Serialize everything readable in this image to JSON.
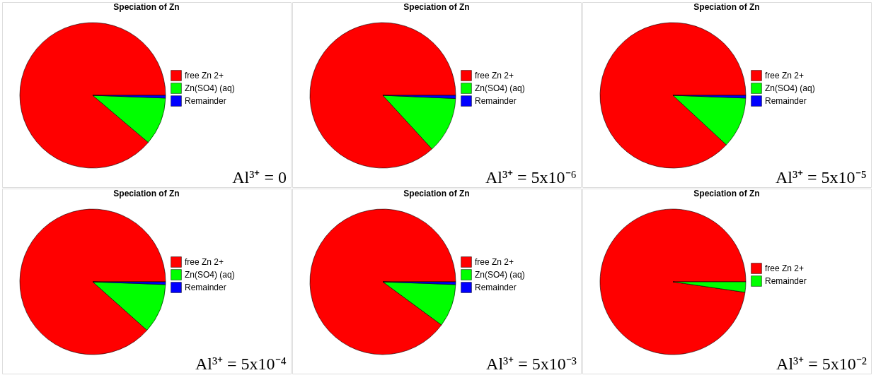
{
  "chart_data": [
    {
      "type": "pie",
      "title": "Speciation of Zn",
      "categories": [
        "free Zn 2+",
        "Zn(SO4) (aq)",
        "Remainder"
      ],
      "values": [
        88.8,
        10.6,
        0.6
      ],
      "colors": [
        "#ff0000",
        "#00ff00",
        "#0000ff"
      ],
      "legend": "right",
      "annotations": [
        "Al³⁺ = 0"
      ]
    },
    {
      "type": "pie",
      "title": "Speciation of Zn",
      "categories": [
        "free Zn 2+",
        "Zn(SO4) (aq)",
        "Remainder"
      ],
      "values": [
        86.8,
        12.5,
        0.7
      ],
      "colors": [
        "#ff0000",
        "#00ff00",
        "#0000ff"
      ],
      "legend": "right",
      "annotations": [
        "Al³⁺ = 5x10⁻⁶"
      ]
    },
    {
      "type": "pie",
      "title": "Speciation of Zn",
      "categories": [
        "free Zn 2+",
        "Zn(SO4) (aq)",
        "Remainder"
      ],
      "values": [
        88.1,
        11.3,
        0.6
      ],
      "colors": [
        "#ff0000",
        "#00ff00",
        "#0000ff"
      ],
      "legend": "right",
      "annotations": [
        "Al³⁺ = 5x10⁻⁵"
      ]
    },
    {
      "type": "pie",
      "title": "Speciation of Zn",
      "categories": [
        "free Zn 2+",
        "Zn(SO4) (aq)",
        "Remainder"
      ],
      "values": [
        88.4,
        11.0,
        0.6
      ],
      "colors": [
        "#ff0000",
        "#00ff00",
        "#0000ff"
      ],
      "legend": "right",
      "annotations": [
        "Al³⁺ = 5x10⁻⁴"
      ]
    },
    {
      "type": "pie",
      "title": "Speciation of Zn",
      "categories": [
        "free Zn 2+",
        "Zn(SO4) (aq)",
        "Remainder"
      ],
      "values": [
        89.9,
        9.5,
        0.6
      ],
      "colors": [
        "#ff0000",
        "#00ff00",
        "#0000ff"
      ],
      "legend": "right",
      "annotations": [
        "Al³⁺ = 5x10⁻³"
      ]
    },
    {
      "type": "pie",
      "title": "Speciation of Zn",
      "categories": [
        "free Zn 2+",
        "Remainder"
      ],
      "values": [
        97.7,
        2.3
      ],
      "colors": [
        "#ff0000",
        "#00ff00"
      ],
      "legend": "right",
      "annotations": [
        "Al³⁺ = 5x10⁻²"
      ]
    }
  ]
}
